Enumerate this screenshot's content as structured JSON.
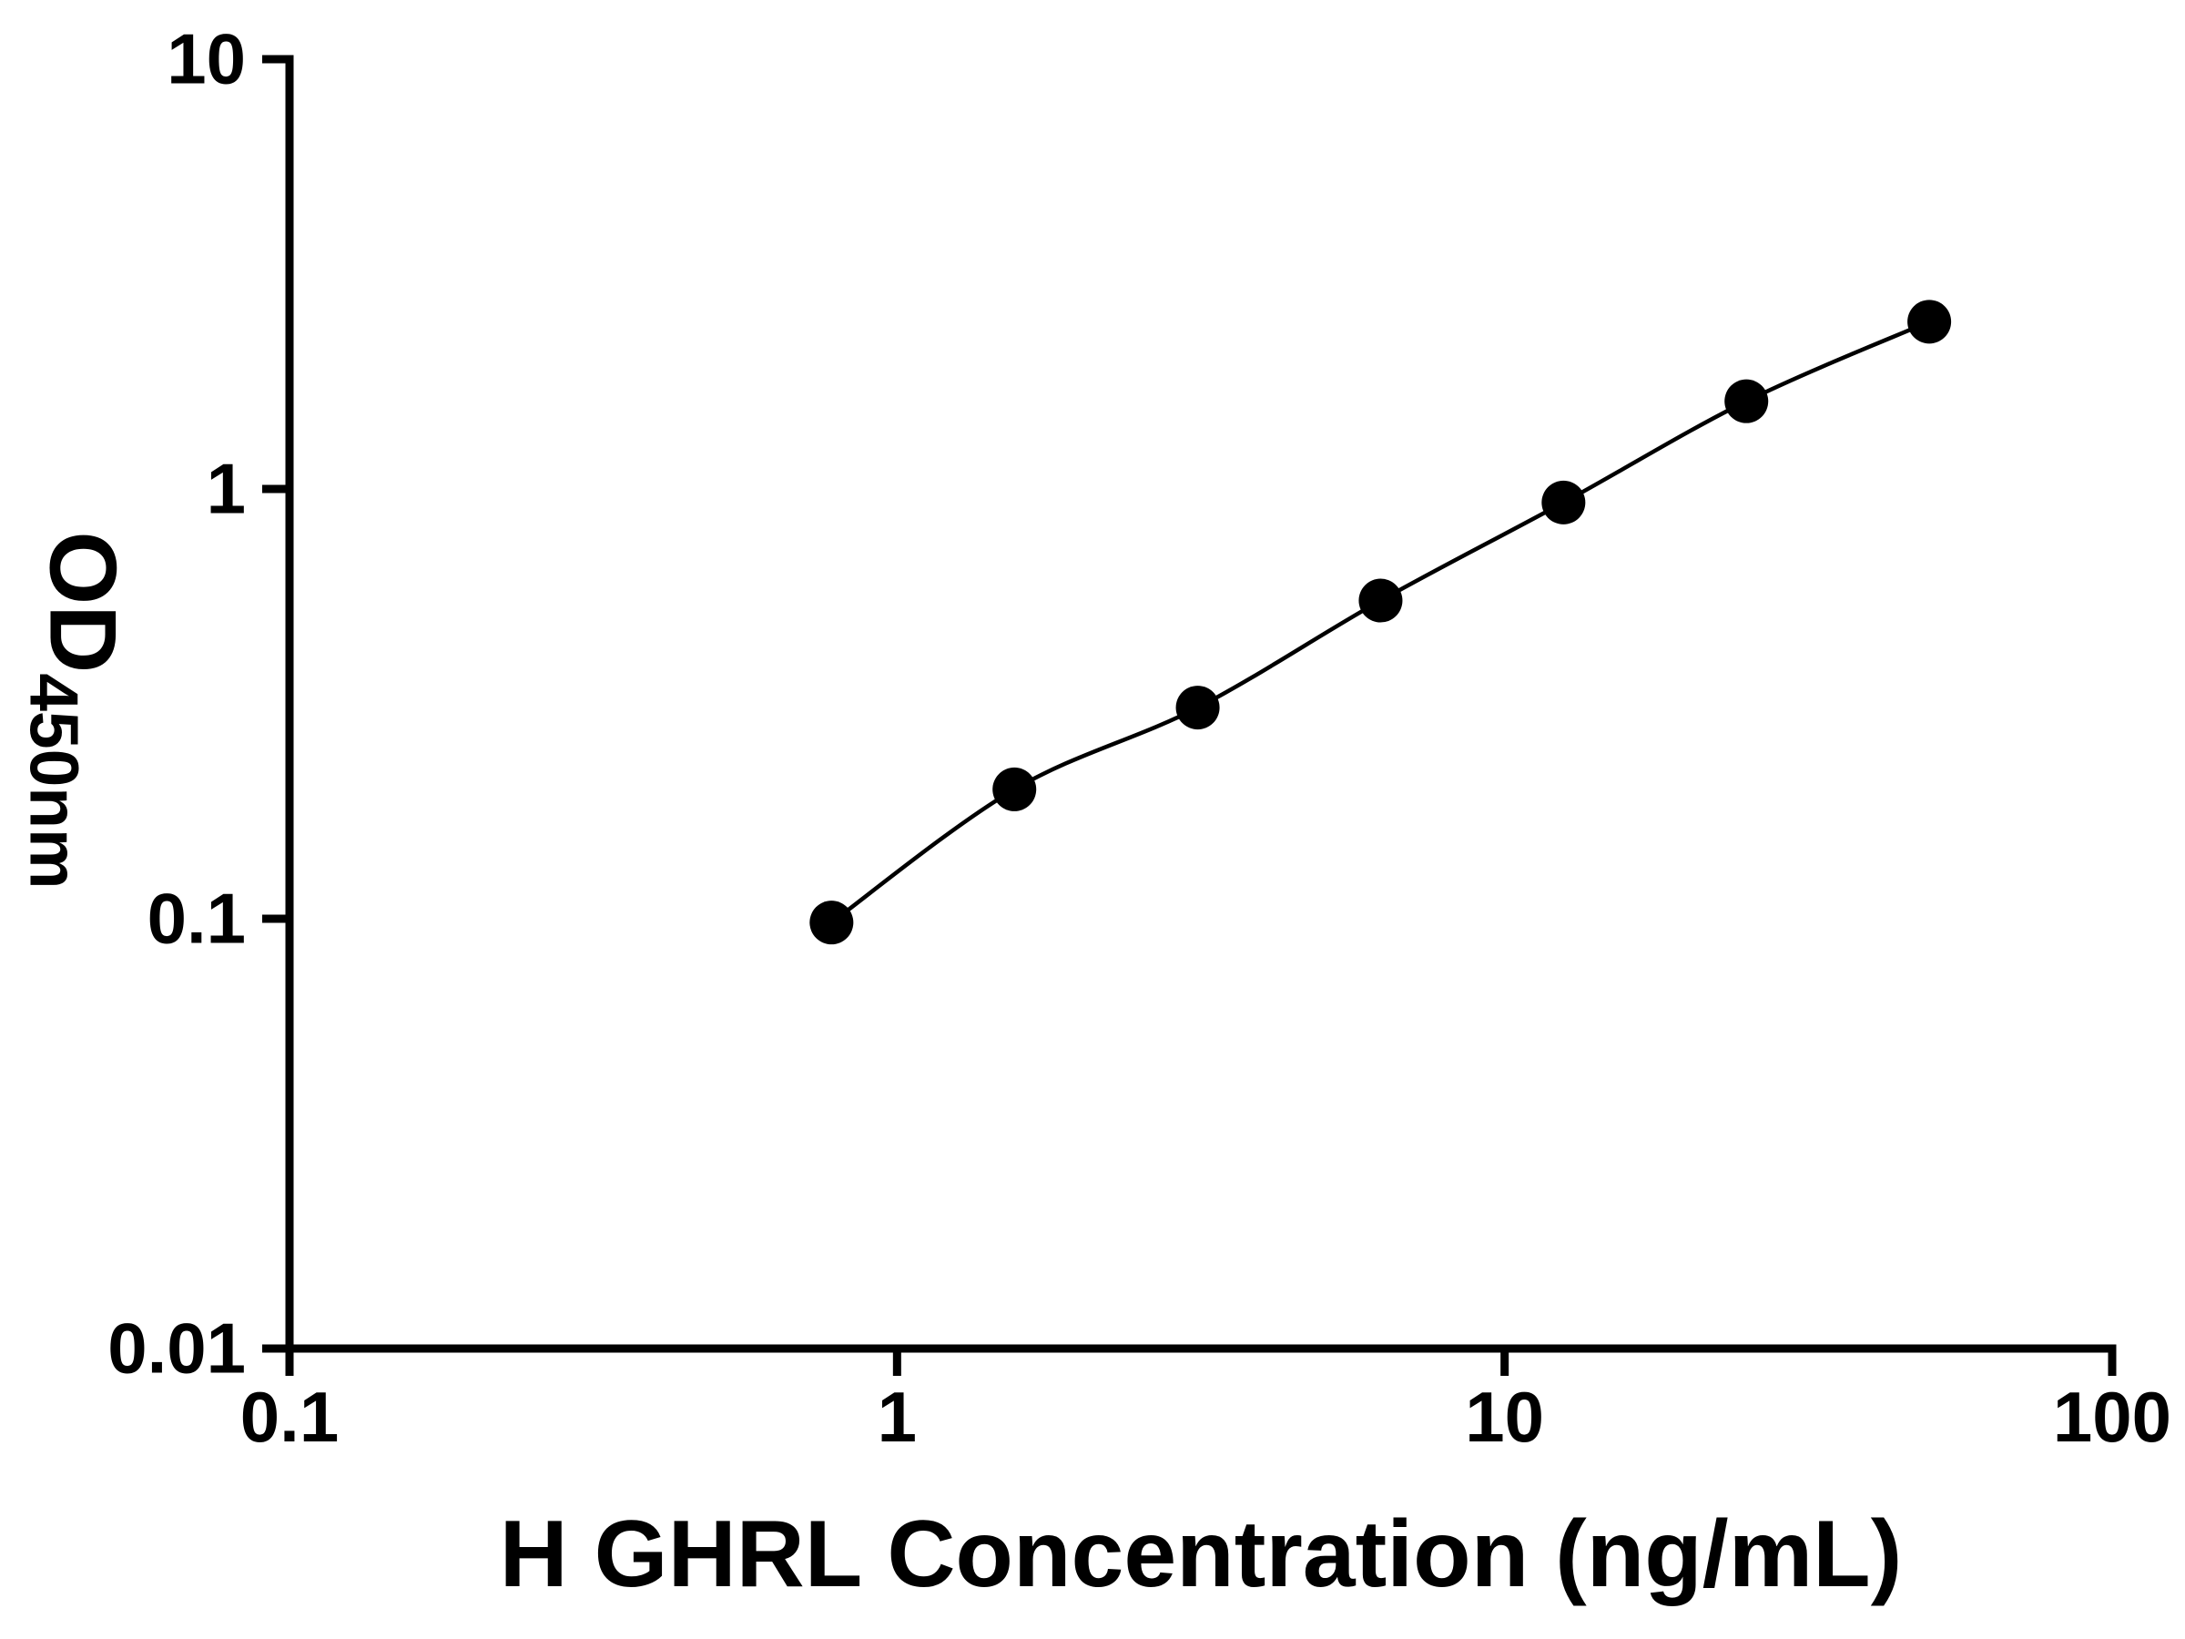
{
  "figure": {
    "background": "#ffffff",
    "foreground": "#000000"
  },
  "chart_data": {
    "type": "scatter",
    "subtype": "elisa-standard-curve-with-fit-line",
    "title": "",
    "xlabel": "H GHRL Concentration (ng/mL)",
    "ylabel": "OD",
    "ylabel_subscript": "450nm",
    "x_scale": "log10",
    "y_scale": "log10",
    "xlim": [
      0.1,
      100
    ],
    "ylim": [
      0.01,
      10
    ],
    "grid": "off",
    "legend": "none",
    "x_ticks": [
      {
        "value": 0.1,
        "label": "0.1"
      },
      {
        "value": 1,
        "label": "1"
      },
      {
        "value": 10,
        "label": "10"
      },
      {
        "value": 100,
        "label": "100"
      }
    ],
    "y_ticks": [
      {
        "value": 0.01,
        "label": "0.01"
      },
      {
        "value": 0.1,
        "label": "0.1"
      },
      {
        "value": 1,
        "label": "1"
      },
      {
        "value": 10,
        "label": "10"
      }
    ],
    "series": [
      {
        "marker": "filled-circle",
        "marker_color": "#000000",
        "line": "smooth-fit",
        "line_color": "#000000",
        "points": [
          {
            "x": 0.78,
            "y": 0.098
          },
          {
            "x": 1.56,
            "y": 0.2
          },
          {
            "x": 3.125,
            "y": 0.31
          },
          {
            "x": 6.25,
            "y": 0.55
          },
          {
            "x": 12.5,
            "y": 0.93
          },
          {
            "x": 25,
            "y": 1.6
          },
          {
            "x": 50,
            "y": 2.45
          }
        ]
      }
    ]
  }
}
